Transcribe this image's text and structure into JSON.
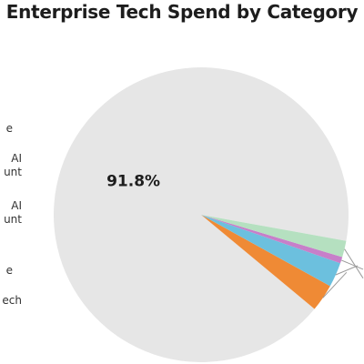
{
  "chart_data": {
    "type": "pie",
    "title": "Enterprise Tech Spend by Category",
    "slices": [
      {
        "label": "",
        "value": 91.8,
        "value_label": "91.8%",
        "color": "#e6e6e6"
      },
      {
        "label": "",
        "value": 3.0,
        "value_label": "",
        "color": "#ef8a35"
      },
      {
        "label": "",
        "value": 2.7,
        "value_label": "",
        "color": "#6cc0de"
      },
      {
        "label": "",
        "value": 0.7,
        "value_label": "",
        "color": "#c77fc9"
      },
      {
        "label": "",
        "value": 1.8,
        "value_label": "",
        "color": "#b5e0c0"
      }
    ],
    "legend": {
      "position": "left",
      "visible_fragments": [
        {
          "lines": [
            "e"
          ]
        },
        {
          "lines": [
            "AI",
            "unt"
          ]
        },
        {
          "lines": [
            "AI",
            "unt"
          ]
        },
        {
          "lines": [
            "e"
          ]
        },
        {
          "lines": [
            "ech"
          ]
        }
      ]
    }
  }
}
